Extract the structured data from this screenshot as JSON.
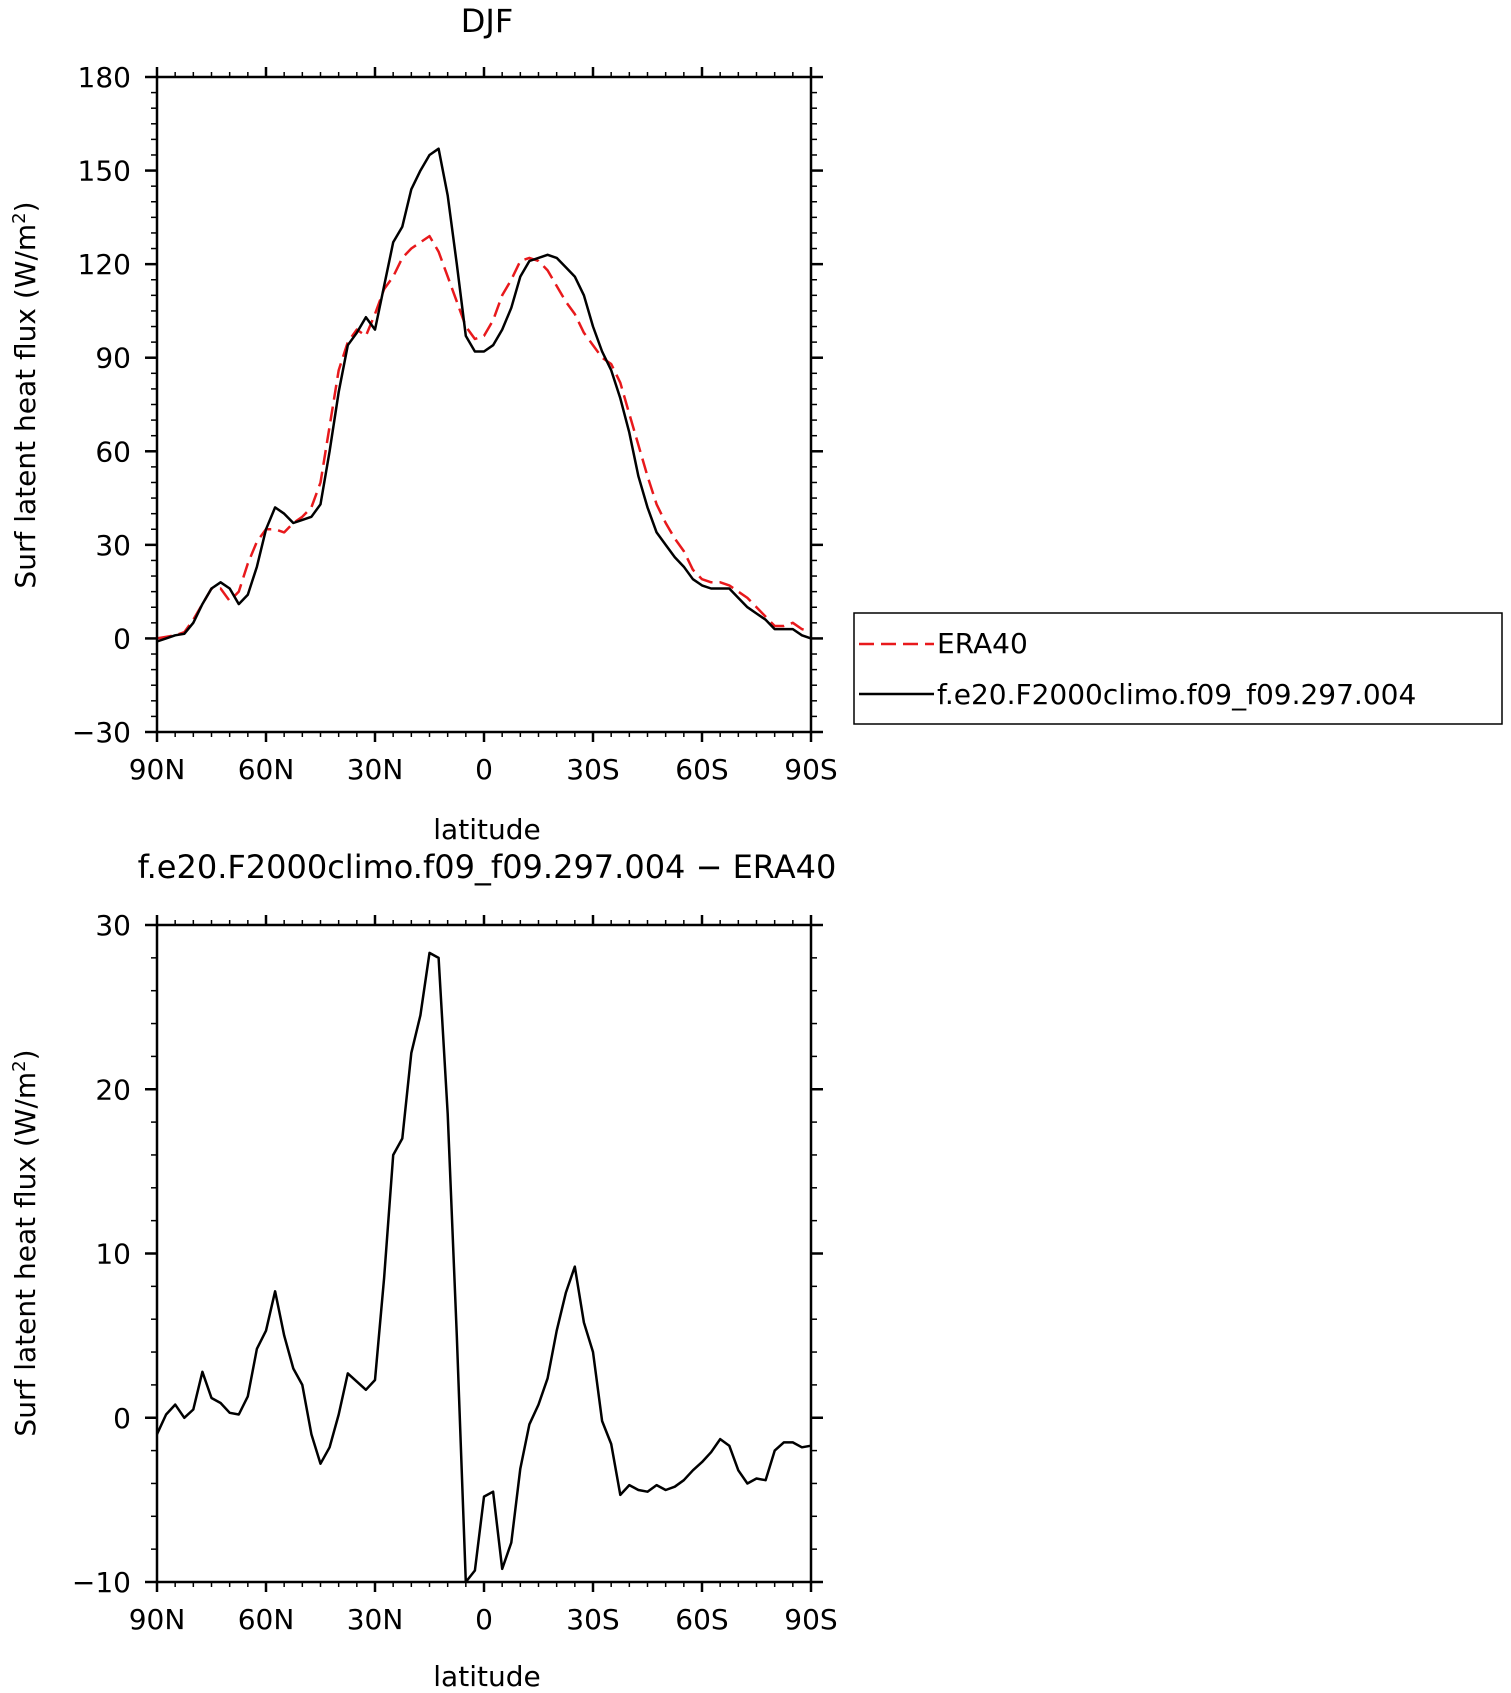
{
  "chart_data": [
    {
      "type": "line",
      "title": "DJF",
      "xlabel": "latitude",
      "ylabel": "Surf latent heat flux (W/m²)",
      "ylabel_main": "Surf latent heat flux (W/m",
      "ylabel_sup": "2",
      "ylabel_close": ")",
      "xlim": [
        90,
        -90
      ],
      "ylim": [
        -30,
        180
      ],
      "x_ticks": [
        {
          "value": 90,
          "label": "90N"
        },
        {
          "value": 60,
          "label": "60N"
        },
        {
          "value": 30,
          "label": "30N"
        },
        {
          "value": 0,
          "label": "0"
        },
        {
          "value": -30,
          "label": "30S"
        },
        {
          "value": -60,
          "label": "60S"
        },
        {
          "value": -90,
          "label": "90S"
        }
      ],
      "y_ticks": [
        {
          "value": 180,
          "label": "180"
        },
        {
          "value": 150,
          "label": "150"
        },
        {
          "value": 120,
          "label": "120"
        },
        {
          "value": 90,
          "label": "90"
        },
        {
          "value": 60,
          "label": "60"
        },
        {
          "value": 30,
          "label": "30"
        },
        {
          "value": 0,
          "label": "0"
        },
        {
          "value": -30,
          "label": "−30"
        }
      ],
      "legend_position": "right",
      "series": [
        {
          "name": "ERA40",
          "color": "#e8191c",
          "style": "dashed",
          "x": [
            90,
            87.5,
            85,
            82.5,
            80,
            77.5,
            75,
            72.5,
            70,
            67.5,
            65,
            62.5,
            60,
            57.5,
            55,
            52.5,
            50,
            47.5,
            45,
            42.5,
            40,
            37.5,
            35,
            32.5,
            30,
            27.5,
            25,
            22.5,
            20,
            17.5,
            15,
            12.5,
            10,
            7.5,
            5,
            2.5,
            0,
            -2.5,
            -5,
            -7.5,
            -10,
            -12.5,
            -15,
            -17.5,
            -20,
            -22.5,
            -25,
            -27.5,
            -30,
            -32.5,
            -35,
            -37.5,
            -40,
            -42.5,
            -45,
            -47.5,
            -50,
            -52.5,
            -55,
            -57.5,
            -60,
            -62.5,
            -65,
            -67.5,
            -70,
            -72.5,
            -75,
            -77.5,
            -80,
            -82.5,
            -85,
            -87.5,
            -90
          ],
          "values": [
            0,
            0.5,
            1,
            2,
            6,
            11,
            16,
            16,
            12,
            15,
            24,
            31,
            35,
            35,
            34,
            37,
            39,
            42,
            50,
            68,
            86,
            95,
            99,
            97,
            104,
            112,
            116,
            122,
            125,
            127,
            129,
            124,
            116,
            108,
            100,
            96,
            97,
            102,
            110,
            115,
            121,
            122,
            121,
            118,
            113,
            108,
            104,
            98,
            94,
            90,
            88,
            82,
            72,
            62,
            52,
            43,
            37,
            32,
            28,
            22,
            19,
            18,
            18,
            17,
            15,
            13,
            10,
            7,
            4,
            4,
            5,
            3,
            2
          ]
        },
        {
          "name": "f.e20.F2000climo.f09_f09.297.004",
          "color": "#000000",
          "style": "solid",
          "x": [
            90,
            87.5,
            85,
            82.5,
            80,
            77.5,
            75,
            72.5,
            70,
            67.5,
            65,
            62.5,
            60,
            57.5,
            55,
            52.5,
            50,
            47.5,
            45,
            42.5,
            40,
            37.5,
            35,
            32.5,
            30,
            27.5,
            25,
            22.5,
            20,
            17.5,
            15,
            12.5,
            10,
            7.5,
            5,
            2.5,
            0,
            -2.5,
            -5,
            -7.5,
            -10,
            -12.5,
            -15,
            -17.5,
            -20,
            -22.5,
            -25,
            -27.5,
            -30,
            -32.5,
            -35,
            -37.5,
            -40,
            -42.5,
            -45,
            -47.5,
            -50,
            -52.5,
            -55,
            -57.5,
            -60,
            -62.5,
            -65,
            -67.5,
            -70,
            -72.5,
            -75,
            -77.5,
            -80,
            -82.5,
            -85,
            -87.5,
            -90
          ],
          "values": [
            -1,
            0,
            1,
            1.5,
            5,
            11,
            16,
            18,
            16,
            11,
            14,
            23,
            35,
            42,
            40,
            37,
            38,
            39,
            43,
            60,
            79,
            94,
            98,
            103,
            99,
            113,
            127,
            132,
            144,
            150,
            155,
            157,
            142,
            120,
            97,
            92,
            92,
            94,
            99,
            106,
            116,
            121,
            122,
            123,
            122,
            119,
            116,
            110,
            100,
            92,
            86,
            77,
            66,
            52,
            42,
            34,
            30,
            26,
            23,
            19,
            17,
            16,
            16,
            16,
            13,
            10,
            8,
            6,
            3,
            3,
            3,
            1,
            0
          ]
        }
      ]
    },
    {
      "type": "line",
      "title": "f.e20.F2000climo.f09_f09.297.004 − ERA40",
      "xlabel": "latitude",
      "ylabel": "Surf latent heat flux (W/m²)",
      "ylabel_main": "Surf latent heat flux (W/m",
      "ylabel_sup": "2",
      "ylabel_close": ")",
      "xlim": [
        90,
        -90
      ],
      "ylim": [
        -10,
        30
      ],
      "x_ticks": [
        {
          "value": 90,
          "label": "90N"
        },
        {
          "value": 60,
          "label": "60N"
        },
        {
          "value": 30,
          "label": "30N"
        },
        {
          "value": 0,
          "label": "0"
        },
        {
          "value": -30,
          "label": "30S"
        },
        {
          "value": -60,
          "label": "60S"
        },
        {
          "value": -90,
          "label": "90S"
        }
      ],
      "y_ticks": [
        {
          "value": 30,
          "label": "30"
        },
        {
          "value": 20,
          "label": "20"
        },
        {
          "value": 10,
          "label": "10"
        },
        {
          "value": 0,
          "label": "0"
        },
        {
          "value": -10,
          "label": "−10"
        }
      ],
      "series": [
        {
          "color": "#000000",
          "style": "solid",
          "x": [
            90,
            87.5,
            85,
            82.5,
            80,
            77.5,
            75,
            72.5,
            70,
            67.5,
            65,
            62.5,
            60,
            57.5,
            55,
            52.5,
            50,
            47.5,
            45,
            42.5,
            40,
            37.5,
            35,
            32.5,
            30,
            27.5,
            25,
            22.5,
            20,
            17.5,
            15,
            12.5,
            10,
            7.5,
            5,
            2.5,
            0,
            -2.5,
            -5,
            -7.5,
            -10,
            -12.5,
            -15,
            -17.5,
            -20,
            -22.5,
            -25,
            -27.5,
            -30,
            -32.5,
            -35,
            -37.5,
            -40,
            -42.5,
            -45,
            -47.5,
            -50,
            -52.5,
            -55,
            -57.5,
            -60,
            -62.5,
            -65,
            -67.5,
            -70,
            -72.5,
            -75,
            -77.5,
            -80,
            -82.5,
            -85,
            -87.5,
            -90
          ],
          "values": [
            -1,
            0.2,
            0.8,
            0,
            0.5,
            2.8,
            1.2,
            0.9,
            0.3,
            0.2,
            1.3,
            4.2,
            5.3,
            7.7,
            5,
            3,
            2,
            -1,
            -2.8,
            -1.8,
            0.2,
            2.7,
            2.2,
            1.7,
            2.3,
            8.5,
            16,
            17,
            22.2,
            24.5,
            28.3,
            28,
            18.5,
            5,
            -10,
            -9.3,
            -4.8,
            -4.5,
            -9.2,
            -7.6,
            -3.1,
            -0.4,
            0.8,
            2.4,
            5.3,
            7.6,
            9.2,
            5.8,
            4,
            -0.2,
            -1.6,
            -4.7,
            -4.1,
            -4.4,
            -4.5,
            -4.1,
            -4.4,
            -4.2,
            -3.8,
            -3.2,
            -2.7,
            -2.1,
            -1.3,
            -1.7,
            -3.2,
            -4,
            -3.7,
            -3.8,
            -2,
            -1.5,
            -1.5,
            -1.8,
            -1.7
          ]
        }
      ]
    }
  ]
}
